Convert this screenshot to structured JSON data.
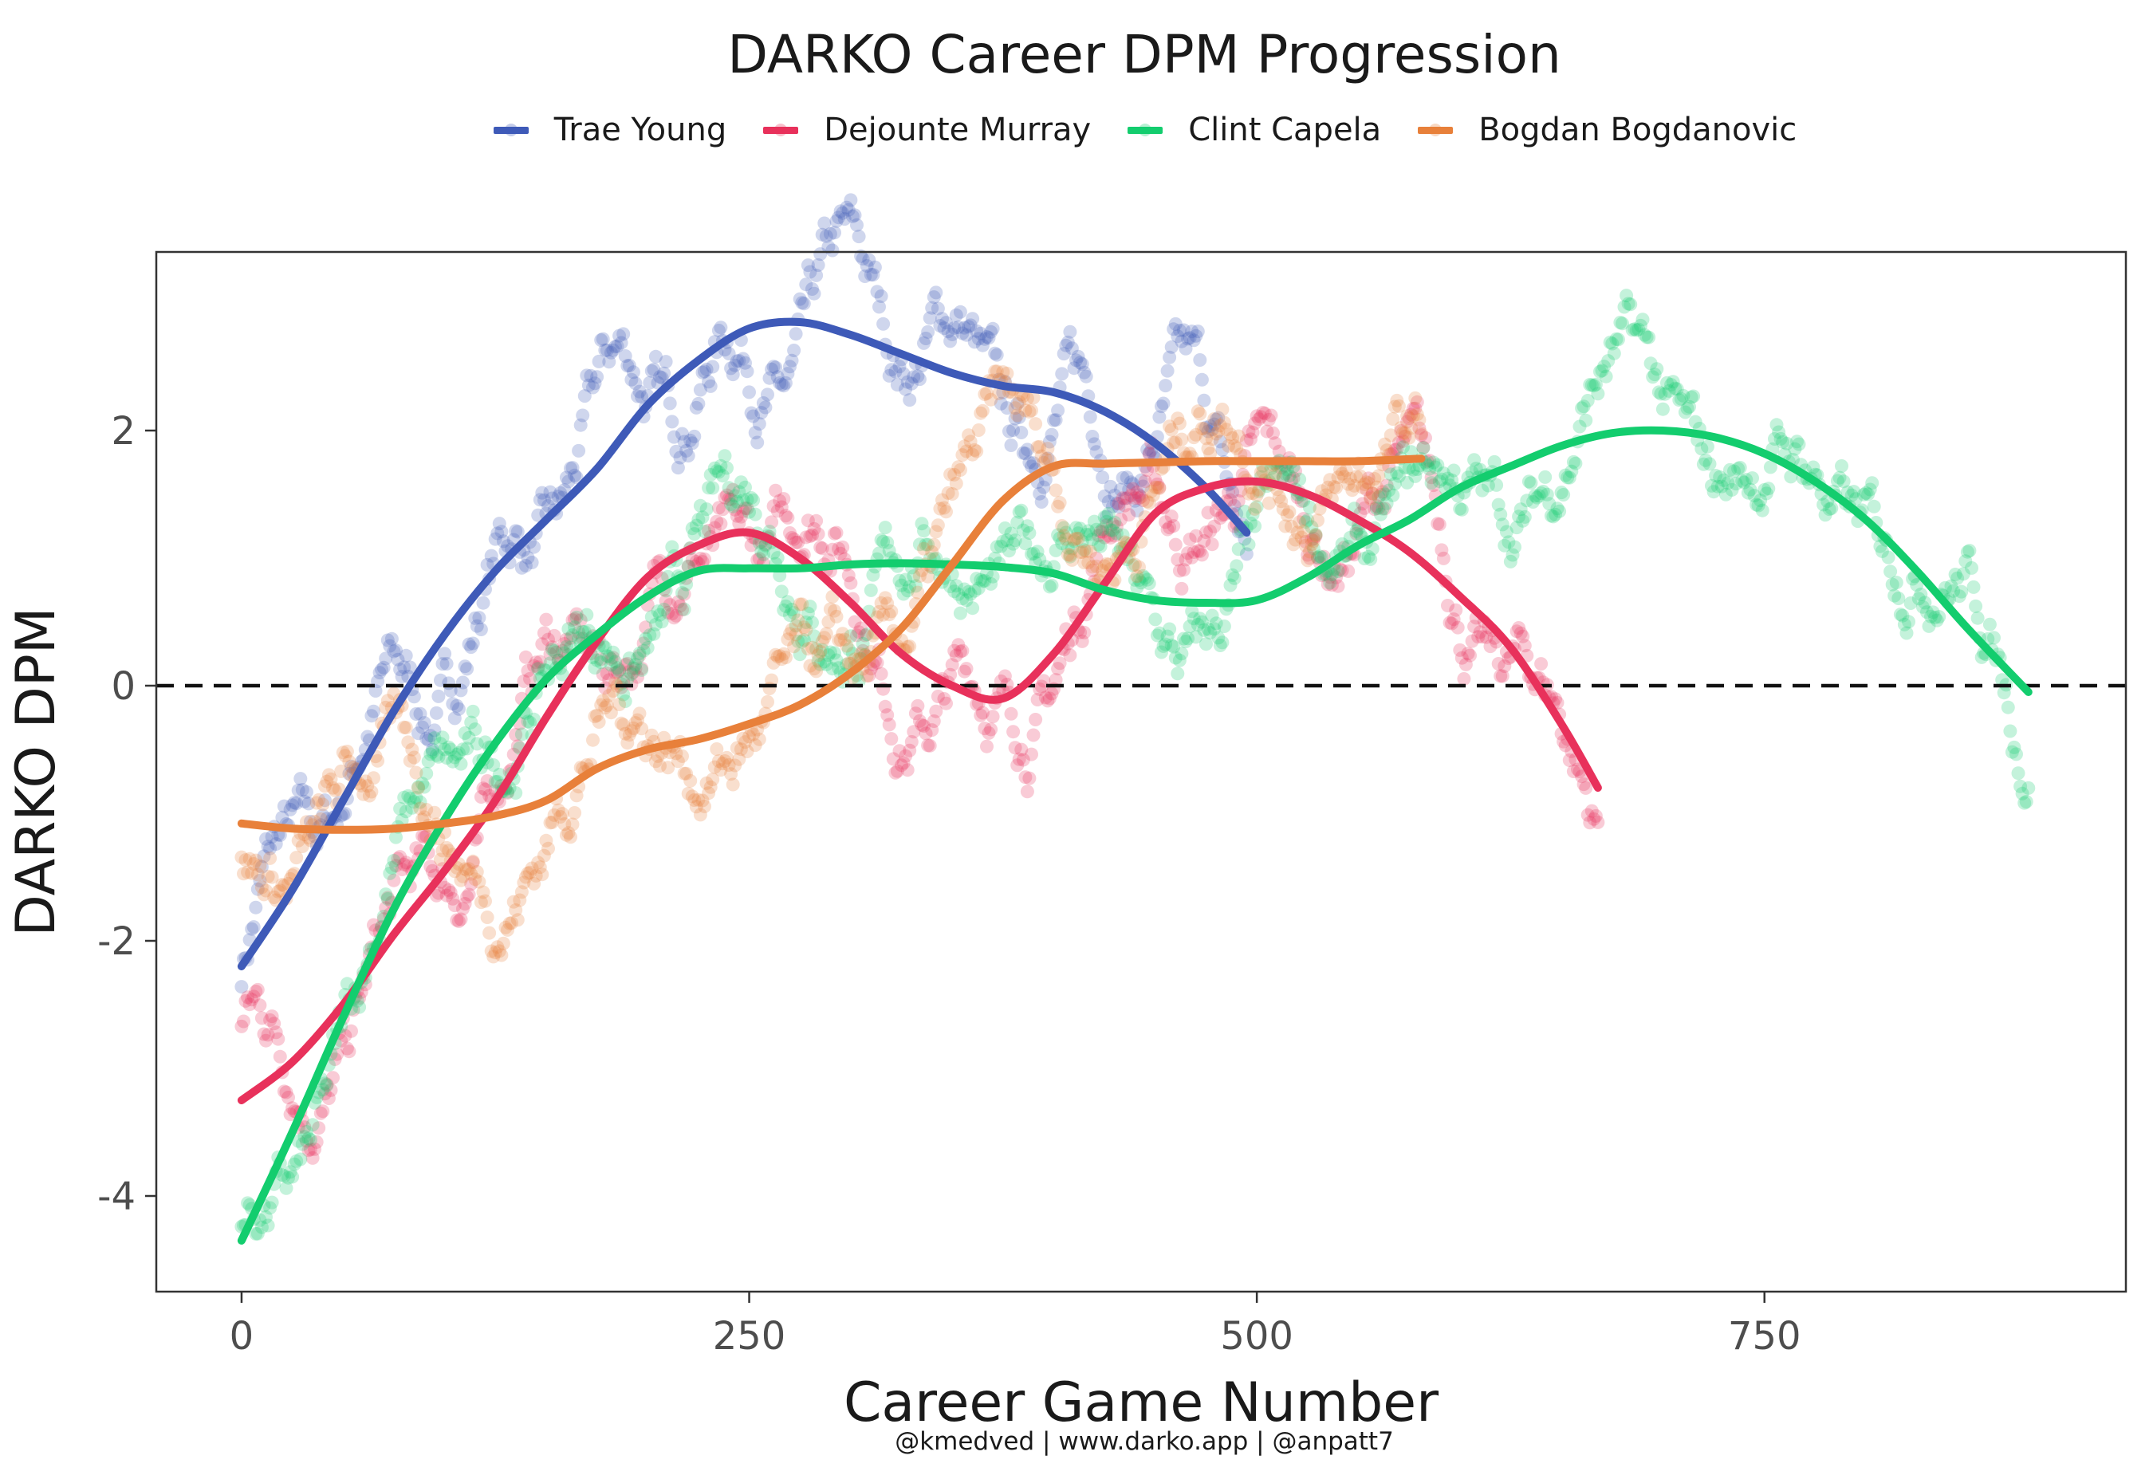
{
  "chart_data": {
    "type": "line",
    "title": "DARKO Career DPM Progression",
    "xlabel": "Career Game Number",
    "ylabel": "DARKO DPM",
    "credit": "@kmedved | www.darko.app | @anpatt7",
    "xlim": [
      -42,
      928
    ],
    "ylim": [
      -4.75,
      3.4
    ],
    "xticks": [
      0,
      250,
      500,
      750
    ],
    "xtick_labels": [
      "0",
      "250",
      "500",
      "750"
    ],
    "yticks": [
      -4,
      -2,
      0,
      2
    ],
    "ytick_labels": [
      "-4",
      "-2",
      "0",
      "2"
    ],
    "reference_line": {
      "y": 0,
      "style": "dashed"
    },
    "grid": false,
    "legend_position": "top",
    "series": [
      {
        "name": "Trae Young",
        "color": "#3e5ab8",
        "x": [
          0,
          25,
          50,
          75,
          100,
          125,
          150,
          175,
          200,
          225,
          250,
          275,
          300,
          325,
          350,
          375,
          400,
          425,
          450,
          475,
          495
        ],
        "y": [
          -2.2,
          -1.6,
          -0.9,
          -0.2,
          0.4,
          0.9,
          1.3,
          1.7,
          2.2,
          2.55,
          2.8,
          2.85,
          2.75,
          2.6,
          2.45,
          2.35,
          2.3,
          2.15,
          1.9,
          1.55,
          1.2
        ]
      },
      {
        "name": "Dejounte Murray",
        "color": "#e8315b",
        "x": [
          0,
          25,
          50,
          75,
          100,
          125,
          150,
          175,
          200,
          225,
          250,
          275,
          300,
          325,
          350,
          375,
          400,
          425,
          450,
          475,
          500,
          525,
          550,
          575,
          600,
          625,
          650,
          668
        ],
        "y": [
          -3.25,
          -2.95,
          -2.5,
          -1.95,
          -1.45,
          -0.9,
          -0.25,
          0.35,
          0.85,
          1.1,
          1.2,
          1.0,
          0.65,
          0.25,
          0.0,
          -0.1,
          0.25,
          0.8,
          1.35,
          1.55,
          1.6,
          1.5,
          1.3,
          1.05,
          0.7,
          0.3,
          -0.3,
          -0.8
        ]
      },
      {
        "name": "Clint Capela",
        "color": "#13cd6e",
        "x": [
          0,
          25,
          50,
          75,
          100,
          125,
          150,
          175,
          200,
          225,
          250,
          275,
          300,
          325,
          350,
          375,
          400,
          425,
          450,
          475,
          500,
          525,
          550,
          575,
          600,
          625,
          650,
          675,
          700,
          725,
          750,
          775,
          800,
          825,
          850,
          880
        ],
        "y": [
          -4.35,
          -3.5,
          -2.6,
          -1.75,
          -1.05,
          -0.45,
          0.05,
          0.4,
          0.7,
          0.9,
          0.92,
          0.92,
          0.95,
          0.96,
          0.95,
          0.93,
          0.88,
          0.75,
          0.67,
          0.65,
          0.67,
          0.85,
          1.1,
          1.3,
          1.55,
          1.72,
          1.88,
          1.98,
          2.0,
          1.95,
          1.82,
          1.6,
          1.3,
          0.9,
          0.45,
          -0.05
        ]
      },
      {
        "name": "Bogdan Bogdanovic",
        "color": "#e8803a",
        "x": [
          0,
          25,
          50,
          75,
          100,
          125,
          150,
          175,
          200,
          225,
          250,
          275,
          300,
          325,
          350,
          375,
          400,
          425,
          450,
          475,
          500,
          525,
          550,
          581
        ],
        "y": [
          -1.08,
          -1.12,
          -1.13,
          -1.12,
          -1.08,
          -1.02,
          -0.9,
          -0.65,
          -0.5,
          -0.42,
          -0.3,
          -0.15,
          0.1,
          0.45,
          0.95,
          1.45,
          1.72,
          1.74,
          1.75,
          1.76,
          1.76,
          1.76,
          1.76,
          1.78
        ]
      }
    ]
  }
}
